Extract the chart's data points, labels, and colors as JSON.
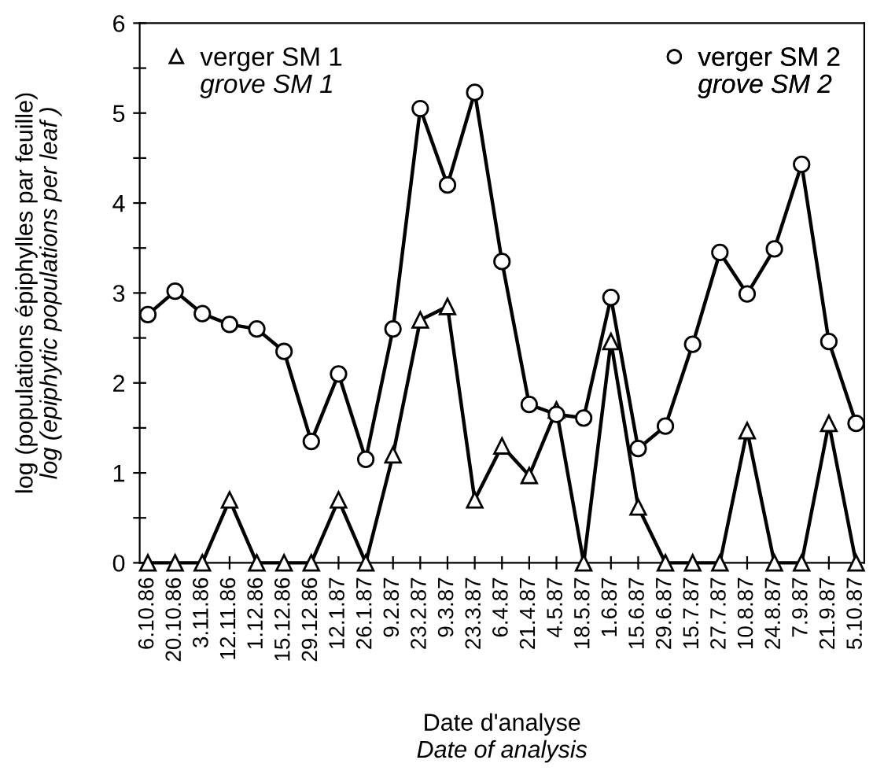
{
  "chart_data": {
    "type": "line",
    "xlabel": "Date d'analyse\nDate of analysis",
    "ylabel": "log (populations épiphylles par feuille)\nlog (epiphytic populations per leaf )",
    "categories": [
      "6.10.86",
      "20.10.86",
      "3.11.86",
      "12.11.86",
      "1.12.86",
      "15.12.86",
      "29.12.86",
      "12.1.87",
      "26.1.87",
      "9.2.87",
      "23.2.87",
      "9.3.87",
      "23.3.87",
      "6.4.87",
      "21.4.87",
      "4.5.87",
      "18.5.87",
      "1.6.87",
      "15.6.87",
      "29.6.87",
      "15.7.87",
      "27.7.87",
      "10.8.87",
      "24.8.87",
      "7.9.87",
      "21.9.87",
      "5.10.87"
    ],
    "series": [
      {
        "name": "verger SM 1\ngrove SM 1",
        "color": "#000000",
        "marker": "triangle",
        "values": [
          0,
          0,
          0,
          0.7,
          0,
          0,
          0,
          0.7,
          0,
          1.2,
          2.7,
          2.85,
          0.7,
          1.3,
          0.97,
          1.7,
          0,
          2.46,
          0.62,
          0,
          0,
          0,
          1.47,
          0,
          0,
          1.55,
          0
        ]
      },
      {
        "name": "verger SM 2\ngrove SM 2",
        "color": "#000000",
        "marker": "circle",
        "values": [
          2.76,
          3.02,
          2.77,
          2.65,
          2.6,
          2.35,
          1.35,
          2.1,
          1.15,
          2.6,
          5.05,
          4.2,
          5.23,
          3.35,
          1.76,
          1.65,
          1.61,
          2.95,
          1.27,
          1.52,
          2.43,
          3.45,
          2.99,
          3.49,
          4.43,
          2.46,
          1.55
        ]
      }
    ],
    "ylim": [
      0,
      6
    ],
    "yticks": [
      0,
      {
        "value": 0.5,
        "label": null
      },
      1,
      {
        "value": 1.5,
        "label": null
      },
      2,
      {
        "value": 2.5,
        "label": null
      },
      3,
      {
        "value": 3.5,
        "label": null
      },
      4,
      {
        "value": 4.5,
        "label": null
      },
      5,
      {
        "value": 5.5,
        "label": null
      },
      6
    ],
    "line_style": "solid",
    "legend": "top",
    "grid": false
  }
}
